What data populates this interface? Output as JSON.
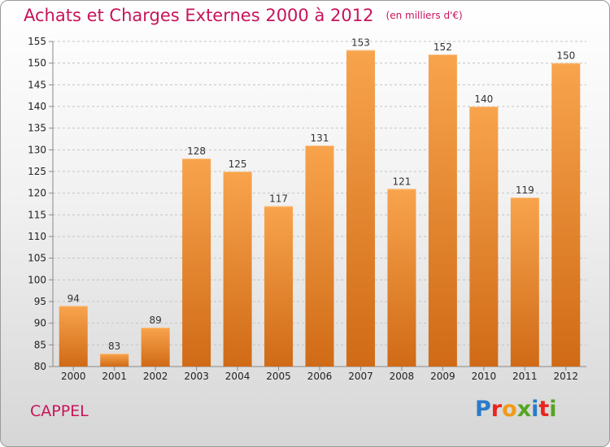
{
  "header": {
    "title": "Achats et Charges Externes 2000 à 2012",
    "unit": "(en milliers d'€)"
  },
  "footer": {
    "commune": "CAPPEL",
    "logo_text": "Proxiti"
  },
  "colors": {
    "title": "#c8145a",
    "bar_light": "#f8a44d",
    "bar_dark": "#d06a16"
  },
  "chart_data": {
    "type": "bar",
    "title": "Achats et Charges Externes 2000 à 2012",
    "subtitle": "(en milliers d'€)",
    "xlabel": "",
    "ylabel": "",
    "categories": [
      "2000",
      "2001",
      "2002",
      "2003",
      "2004",
      "2005",
      "2006",
      "2007",
      "2008",
      "2009",
      "2010",
      "2011",
      "2012"
    ],
    "values": [
      94,
      83,
      89,
      128,
      125,
      117,
      131,
      153,
      121,
      152,
      140,
      119,
      150
    ],
    "ylim": [
      80,
      155
    ],
    "yticks": [
      80,
      85,
      90,
      95,
      100,
      105,
      110,
      115,
      120,
      125,
      130,
      135,
      140,
      145,
      150,
      155
    ],
    "grid": true
  }
}
